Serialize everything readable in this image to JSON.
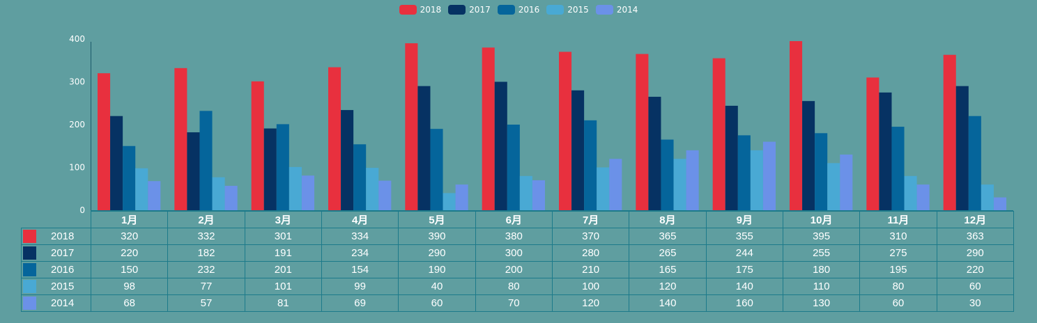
{
  "chart_data": {
    "type": "bar",
    "title": "",
    "xlabel": "",
    "ylabel": "",
    "ylim": [
      0,
      400
    ],
    "yticks": [
      0,
      100,
      200,
      300,
      400
    ],
    "categories": [
      "1月",
      "2月",
      "3月",
      "4月",
      "5月",
      "6月",
      "7月",
      "8月",
      "9月",
      "10月",
      "11月",
      "12月"
    ],
    "legend_position": "top-center",
    "series": [
      {
        "name": "2018",
        "color": "#e8303e",
        "values": [
          320,
          332,
          301,
          334,
          390,
          380,
          370,
          365,
          355,
          395,
          310,
          363
        ]
      },
      {
        "name": "2017",
        "color": "#063263",
        "values": [
          220,
          182,
          191,
          234,
          290,
          300,
          280,
          265,
          244,
          255,
          275,
          290
        ]
      },
      {
        "name": "2016",
        "color": "#05659b",
        "values": [
          150,
          232,
          201,
          154,
          190,
          200,
          210,
          165,
          175,
          180,
          195,
          220
        ]
      },
      {
        "name": "2015",
        "color": "#49a9d4",
        "values": [
          98,
          77,
          101,
          99,
          40,
          80,
          100,
          120,
          140,
          110,
          80,
          60
        ]
      },
      {
        "name": "2014",
        "color": "#6b91e8",
        "values": [
          68,
          57,
          81,
          69,
          60,
          70,
          120,
          140,
          160,
          130,
          60,
          30
        ]
      }
    ]
  }
}
